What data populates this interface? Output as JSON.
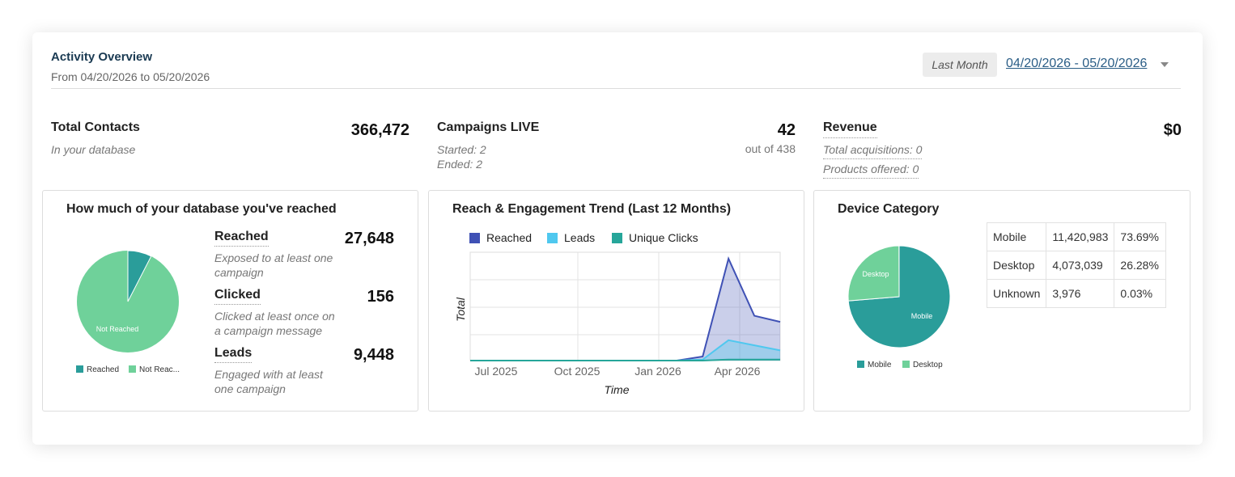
{
  "header": {
    "title": "Activity Overview",
    "subtitle": "From 04/20/2026 to 05/20/2026",
    "period_label": "Last Month",
    "date_range": "04/20/2026 - 05/20/2026"
  },
  "stats": {
    "total_contacts": {
      "label": "Total Contacts",
      "value": "366,472",
      "note": "In your database"
    },
    "campaigns_live": {
      "label": "Campaigns LIVE",
      "value": "42",
      "sub": "out of 438",
      "started": "Started: 2",
      "ended": "Ended: 2"
    },
    "revenue": {
      "label": "Revenue",
      "value": "$0",
      "acquisitions": "Total acquisitions: 0",
      "products": "Products offered: 0"
    }
  },
  "reach_card": {
    "title": "How much of your database you've reached",
    "pie_label": "Not Reached",
    "legend": [
      "Reached",
      "Not Reac..."
    ],
    "colors": {
      "reached": "#2a9d9a",
      "not_reached": "#6fd19a"
    },
    "metrics": [
      {
        "label": "Reached",
        "value": "27,648",
        "desc": "Exposed to at least one campaign"
      },
      {
        "label": "Clicked",
        "value": "156",
        "desc": "Clicked at least once on a campaign message"
      },
      {
        "label": "Leads",
        "value": "9,448",
        "desc": "Engaged with at least one campaign"
      }
    ],
    "chart_data": {
      "type": "pie",
      "labels": [
        "Reached",
        "Not Reached"
      ],
      "values": [
        27648,
        338824
      ]
    }
  },
  "trend_card": {
    "title": "Reach & Engagement Trend (Last 12 Months)",
    "legend": [
      {
        "name": "Reached",
        "color": "#3f51b5"
      },
      {
        "name": "Leads",
        "color": "#4fc8ef"
      },
      {
        "name": "Unique Clicks",
        "color": "#26a69a"
      }
    ],
    "chart_data": {
      "type": "area",
      "xlabel": "Time",
      "ylabel": "Total",
      "x_ticks": [
        "Jul 2025",
        "Oct 2025",
        "Jan 2026",
        "Apr 2026"
      ],
      "x": [
        "2025-05",
        "2025-06",
        "2025-07",
        "2025-08",
        "2025-09",
        "2025-10",
        "2025-11",
        "2025-12",
        "2026-01",
        "2026-02",
        "2026-03",
        "2026-04",
        "2026-05"
      ],
      "series": [
        {
          "name": "Reached",
          "values": [
            0,
            0,
            0,
            0,
            0,
            0,
            0,
            0,
            0,
            0.04,
            1.0,
            0.44,
            0.38
          ]
        },
        {
          "name": "Leads",
          "values": [
            0,
            0,
            0,
            0,
            0,
            0,
            0,
            0,
            0,
            0.01,
            0.2,
            0.15,
            0.1
          ]
        },
        {
          "name": "Unique Clicks",
          "values": [
            0,
            0,
            0,
            0,
            0,
            0,
            0,
            0,
            0,
            0,
            0.01,
            0.01,
            0.01
          ]
        }
      ]
    }
  },
  "device_card": {
    "title": "Device Category",
    "legend": [
      "Mobile",
      "Desktop"
    ],
    "pie_labels": {
      "mobile": "Mobile",
      "desktop": "Desktop"
    },
    "colors": {
      "mobile": "#2a9d9a",
      "desktop": "#6fd19a"
    },
    "table": [
      [
        "Mobile",
        "11,420,983",
        "73.69%"
      ],
      [
        "Desktop",
        "4,073,039",
        "26.28%"
      ],
      [
        "Unknown",
        "3,976",
        "0.03%"
      ]
    ],
    "chart_data": {
      "type": "pie",
      "labels": [
        "Mobile",
        "Desktop",
        "Unknown"
      ],
      "values": [
        73.69,
        26.28,
        0.03
      ]
    }
  }
}
